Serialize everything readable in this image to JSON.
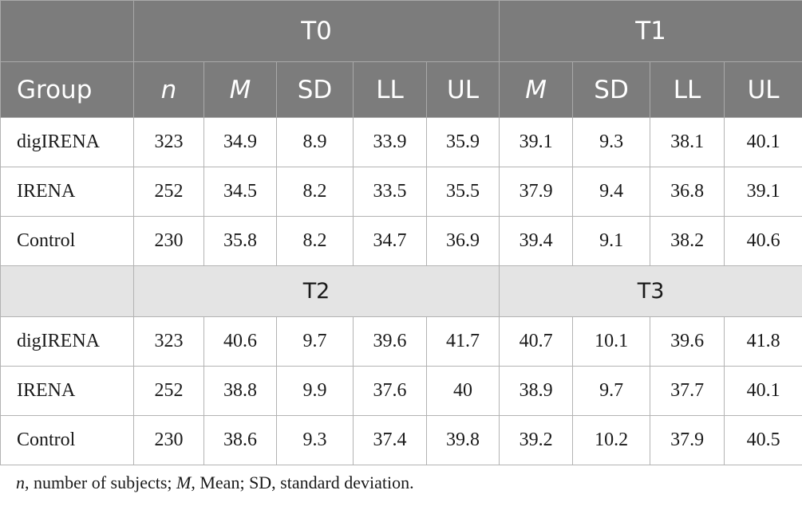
{
  "table": {
    "time_labels": {
      "t0": "T0",
      "t1": "T1",
      "t2": "T2",
      "t3": "T3"
    },
    "column_headers": {
      "group": "Group",
      "n": "n",
      "m_t0": "M",
      "sd_t0": "SD",
      "ll_t0": "LL",
      "ul_t0": "UL",
      "m_t1": "M",
      "sd_t1": "SD",
      "ll_t1": "LL",
      "ul_t1": "UL"
    },
    "block_a": [
      {
        "group": "digIRENA",
        "n": "323",
        "t0_m": "34.9",
        "t0_sd": "8.9",
        "t0_ll": "33.9",
        "t0_ul": "35.9",
        "t1_m": "39.1",
        "t1_sd": "9.3",
        "t1_ll": "38.1",
        "t1_ul": "40.1"
      },
      {
        "group": "IRENA",
        "n": "252",
        "t0_m": "34.5",
        "t0_sd": "8.2",
        "t0_ll": "33.5",
        "t0_ul": "35.5",
        "t1_m": "37.9",
        "t1_sd": "9.4",
        "t1_ll": "36.8",
        "t1_ul": "39.1"
      },
      {
        "group": "Control",
        "n": "230",
        "t0_m": "35.8",
        "t0_sd": "8.2",
        "t0_ll": "34.7",
        "t0_ul": "36.9",
        "t1_m": "39.4",
        "t1_sd": "9.1",
        "t1_ll": "38.2",
        "t1_ul": "40.6"
      }
    ],
    "block_b": [
      {
        "group": "digIRENA",
        "n": "323",
        "t2_m": "40.6",
        "t2_sd": "9.7",
        "t2_ll": "39.6",
        "t2_ul": "41.7",
        "t3_m": "40.7",
        "t3_sd": "10.1",
        "t3_ll": "39.6",
        "t3_ul": "41.8"
      },
      {
        "group": "IRENA",
        "n": "252",
        "t2_m": "38.8",
        "t2_sd": "9.9",
        "t2_ll": "37.6",
        "t2_ul": "40",
        "t3_m": "38.9",
        "t3_sd": "9.7",
        "t3_ll": "37.7",
        "t3_ul": "40.1"
      },
      {
        "group": "Control",
        "n": "230",
        "t2_m": "38.6",
        "t2_sd": "9.3",
        "t2_ll": "37.4",
        "t2_ul": "39.8",
        "t3_m": "39.2",
        "t3_sd": "10.2",
        "t3_ll": "37.9",
        "t3_ul": "40.5"
      }
    ]
  },
  "footnote": {
    "n_sym": "n",
    "n_desc": ", number of subjects; ",
    "m_sym": "M",
    "m_desc": ", Mean; SD, standard deviation."
  }
}
